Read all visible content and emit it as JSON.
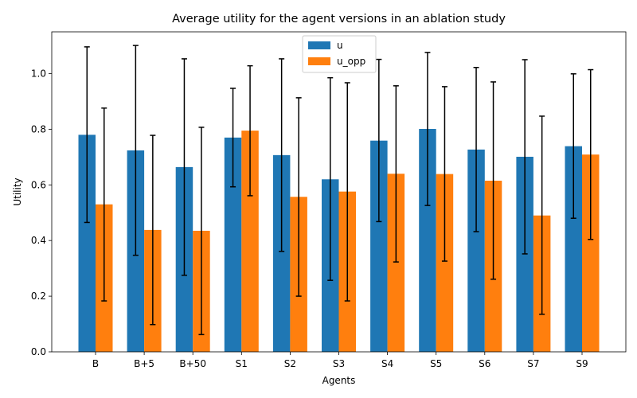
{
  "chart_data": {
    "type": "bar",
    "title": "Average utility for the agent versions in an ablation study",
    "xlabel": "Agents",
    "ylabel": "Utility",
    "ylim": [
      0,
      1.15
    ],
    "yticks": [
      0.0,
      0.2,
      0.4,
      0.6,
      0.8,
      1.0
    ],
    "ytick_labels": [
      "0.0",
      "0.2",
      "0.4",
      "0.6",
      "0.8",
      "1.0"
    ],
    "grid": false,
    "legend_position": "top-center",
    "categories": [
      "B",
      "B+5",
      "B+50",
      "S1",
      "S2",
      "S3",
      "S4",
      "S5",
      "S6",
      "S7",
      "S9"
    ],
    "series": [
      {
        "name": "u",
        "color": "#1f77b4",
        "values": [
          0.78,
          0.724,
          0.664,
          0.77,
          0.707,
          0.62,
          0.759,
          0.801,
          0.727,
          0.701,
          0.739
        ],
        "err_low": [
          0.465,
          0.347,
          0.275,
          0.593,
          0.361,
          0.257,
          0.468,
          0.526,
          0.432,
          0.352,
          0.48
        ],
        "err_high": [
          1.096,
          1.101,
          1.053,
          0.947,
          1.053,
          0.985,
          1.051,
          1.076,
          1.022,
          1.05,
          0.999
        ]
      },
      {
        "name": "u_opp",
        "color": "#ff7f0e",
        "values": [
          0.53,
          0.438,
          0.435,
          0.795,
          0.557,
          0.576,
          0.64,
          0.639,
          0.615,
          0.49,
          0.709
        ],
        "err_low": [
          0.183,
          0.098,
          0.062,
          0.561,
          0.2,
          0.183,
          0.323,
          0.326,
          0.261,
          0.135,
          0.404
        ],
        "err_high": [
          0.876,
          0.778,
          0.807,
          1.028,
          0.913,
          0.967,
          0.956,
          0.953,
          0.97,
          0.847,
          1.014
        ]
      }
    ]
  }
}
